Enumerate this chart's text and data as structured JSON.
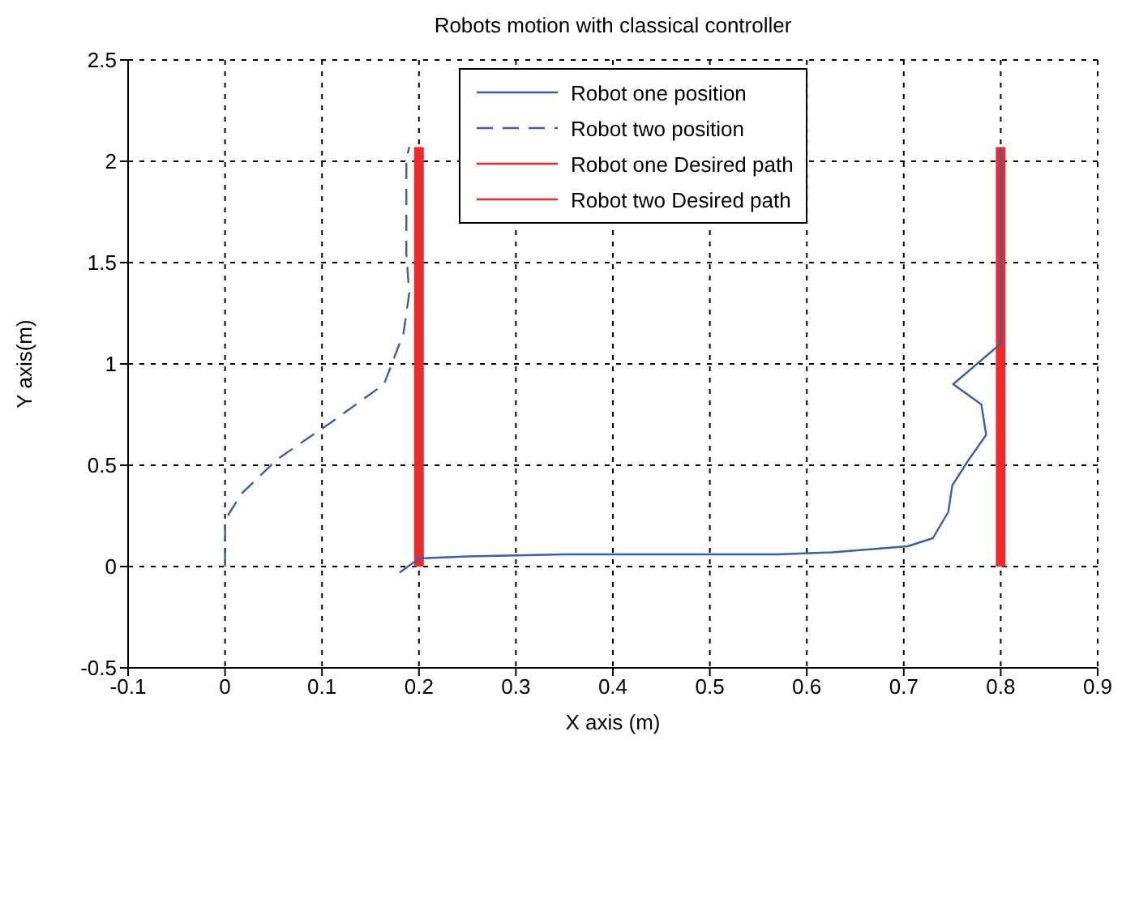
{
  "chart_data": {
    "type": "line",
    "title": "Robots motion with classical controller",
    "xlabel": "X axis (m)",
    "ylabel": "Y axis(m)",
    "xlim": [
      -0.1,
      0.9
    ],
    "xticks": [
      -0.1,
      0,
      0.1,
      0.2,
      0.3,
      0.4,
      0.5,
      0.6,
      0.7,
      0.8,
      0.9
    ],
    "ylim": [
      -0.5,
      2.5
    ],
    "yticks": [
      -0.5,
      0,
      0.5,
      1,
      1.5,
      2,
      2.5
    ],
    "grid": true,
    "legend": "top right",
    "series": [
      {
        "name": "Robot one position",
        "color": "#3b5fa8",
        "line_style": "solid",
        "x": [
          0.18,
          0.2,
          0.25,
          0.35,
          0.5,
          0.57,
          0.626,
          0.704,
          0.73,
          0.746,
          0.75,
          0.766,
          0.785,
          0.78,
          0.751,
          0.8,
          0.8,
          0.8
        ],
        "values": [
          -0.03,
          0.04,
          0.05,
          0.06,
          0.06,
          0.06,
          0.07,
          0.1,
          0.14,
          0.27,
          0.4,
          0.52,
          0.65,
          0.8,
          0.9,
          1.1,
          1.31,
          2.07
        ]
      },
      {
        "name": "Robot two position",
        "color": "#3b5fa8",
        "line_style": "dashed",
        "x": [
          0,
          0,
          0.017,
          0.054,
          0.109,
          0.164,
          0.184,
          0.19,
          0.187,
          0.187,
          0.19
        ],
        "values": [
          0,
          0.23,
          0.36,
          0.53,
          0.71,
          0.9,
          1.15,
          1.35,
          1.54,
          2.01,
          2.07
        ]
      },
      {
        "name": "Robot one Desired path",
        "color": "#ee2a2a",
        "line_style": "solid",
        "x": [
          0.8,
          0.8
        ],
        "values": [
          0,
          2.07
        ]
      },
      {
        "name": "Robot two Desired path",
        "color": "#ee2a2a",
        "line_style": "solid",
        "x": [
          0.2,
          0.2
        ],
        "values": [
          0,
          2.07
        ]
      }
    ]
  }
}
